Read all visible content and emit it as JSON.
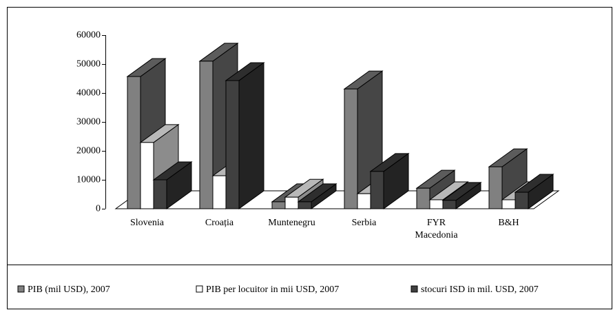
{
  "chart_data": {
    "type": "bar3d",
    "categories": [
      "Slovenia",
      "Croația",
      "Muntenegru",
      "Serbia",
      "FYR Macedonia",
      "B&H"
    ],
    "series": [
      {
        "name": "PIB (mil USD), 2007",
        "color": "#808080",
        "values": [
          45700,
          51000,
          2400,
          41400,
          7100,
          14500
        ]
      },
      {
        "name": "PIB per locuitor in mii USD, 2007",
        "color": "#ffffff",
        "values": [
          22900,
          11400,
          4000,
          5200,
          3100,
          3100
        ]
      },
      {
        "name": "stocuri ISD in mil. USD, 2007",
        "color": "#404040",
        "values": [
          10000,
          44300,
          2400,
          12900,
          2900,
          5700
        ]
      }
    ],
    "ylim": [
      0,
      60000
    ],
    "yticks": [
      0,
      10000,
      20000,
      30000,
      40000,
      50000,
      60000
    ],
    "legend": "bottom"
  }
}
